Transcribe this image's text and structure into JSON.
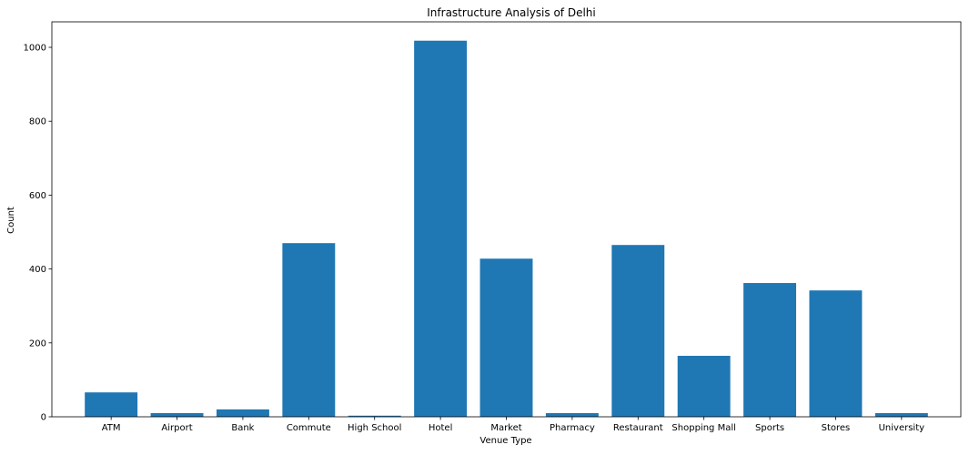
{
  "chart_data": {
    "type": "bar",
    "title": "Infrastructure Analysis of Delhi",
    "xlabel": "Venue Type",
    "ylabel": "Count",
    "categories": [
      "ATM",
      "Airport",
      "Bank",
      "Commute",
      "High School",
      "Hotel",
      "Market",
      "Pharmacy",
      "Restaurant",
      "Shopping Mall",
      "Sports",
      "Stores",
      "University"
    ],
    "values": [
      66,
      10,
      20,
      470,
      3,
      1018,
      428,
      10,
      465,
      165,
      362,
      342,
      10
    ],
    "yticks": [
      0,
      200,
      400,
      600,
      800,
      1000
    ],
    "ylim": [
      0,
      1069
    ],
    "grid": false,
    "bar_color": "#1f77b4"
  }
}
